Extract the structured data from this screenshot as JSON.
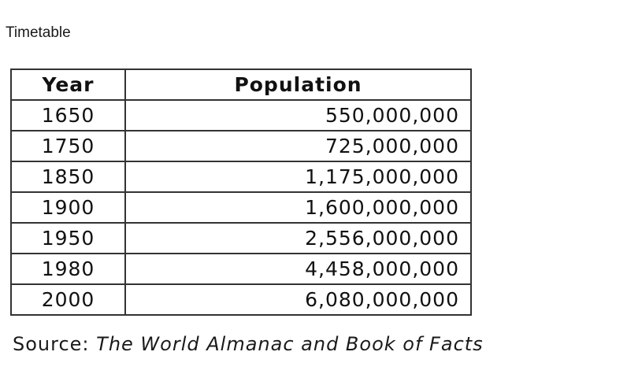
{
  "caption": "Timetable",
  "table": {
    "headers": [
      "Year",
      "Population"
    ],
    "rows": [
      {
        "year": "1650",
        "population": "550,000,000"
      },
      {
        "year": "1750",
        "population": "725,000,000"
      },
      {
        "year": "1850",
        "population": "1,175,000,000"
      },
      {
        "year": "1900",
        "population": "1,600,000,000"
      },
      {
        "year": "1950",
        "population": "2,556,000,000"
      },
      {
        "year": "1980",
        "population": "4,458,000,000"
      },
      {
        "year": "2000",
        "population": "6,080,000,000"
      }
    ]
  },
  "source": {
    "label": "Source:",
    "title": "The World Almanac and Book of Facts"
  }
}
